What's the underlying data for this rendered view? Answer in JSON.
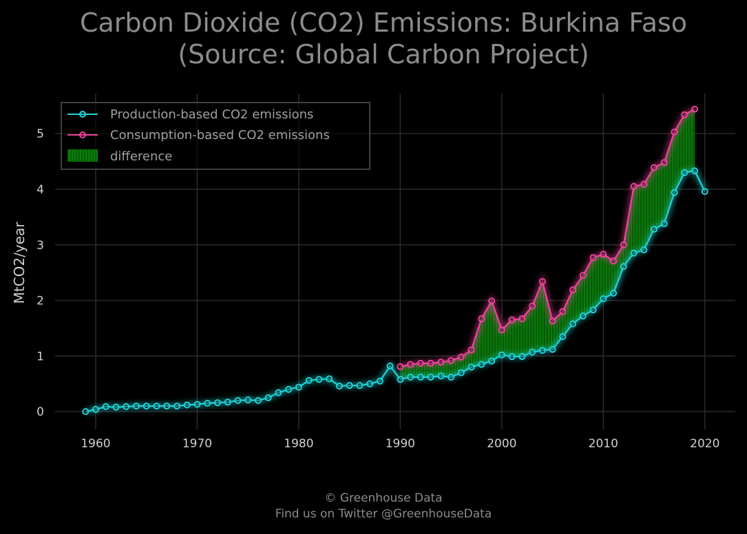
{
  "title_line1": "Carbon Dioxide (CO2) Emissions: Burkina Faso",
  "title_line2": "(Source: Global Carbon Project)",
  "footer_line1": "© Greenhouse Data",
  "footer_line2": "Find us on Twitter @GreenhouseData",
  "colors": {
    "background": "#000000",
    "production": "#1fd5d9",
    "consumption": "#f0449c",
    "difference": "#0a8a0a",
    "grid": "#2b2b2b",
    "title": "#8c8c8c",
    "ticks": "#d0d0d0"
  },
  "chart_data": {
    "type": "line",
    "title": "Carbon Dioxide (CO2) Emissions: Burkina Faso (Source: Global Carbon Project)",
    "xlabel": "",
    "ylabel": "MtCO2/year",
    "xlim": [
      1956,
      2023
    ],
    "ylim": [
      -0.32,
      5.72
    ],
    "xticks": [
      1960,
      1970,
      1980,
      1990,
      2000,
      2010,
      2020
    ],
    "yticks": [
      0,
      1,
      2,
      3,
      4,
      5
    ],
    "grid": true,
    "legend_position": "top-left",
    "legend": [
      "Production-based CO2 emissions",
      "Consumption-based CO2 emissions",
      "difference"
    ],
    "series": [
      {
        "name": "Production-based CO2 emissions",
        "x": [
          1959,
          1960,
          1961,
          1962,
          1963,
          1964,
          1965,
          1966,
          1967,
          1968,
          1969,
          1970,
          1971,
          1972,
          1973,
          1974,
          1975,
          1976,
          1977,
          1978,
          1979,
          1980,
          1981,
          1982,
          1983,
          1984,
          1985,
          1986,
          1987,
          1988,
          1989,
          1990,
          1991,
          1992,
          1993,
          1994,
          1995,
          1996,
          1997,
          1998,
          1999,
          2000,
          2001,
          2002,
          2003,
          2004,
          2005,
          2006,
          2007,
          2008,
          2009,
          2010,
          2011,
          2012,
          2013,
          2014,
          2015,
          2016,
          2017,
          2018,
          2019,
          2020
        ],
        "values": [
          0.0,
          0.04,
          0.09,
          0.08,
          0.09,
          0.1,
          0.1,
          0.1,
          0.1,
          0.1,
          0.12,
          0.13,
          0.15,
          0.16,
          0.17,
          0.2,
          0.21,
          0.2,
          0.25,
          0.34,
          0.4,
          0.44,
          0.56,
          0.58,
          0.59,
          0.46,
          0.47,
          0.47,
          0.5,
          0.55,
          0.82,
          0.58,
          0.62,
          0.62,
          0.62,
          0.64,
          0.62,
          0.7,
          0.8,
          0.85,
          0.91,
          1.02,
          0.99,
          0.99,
          1.07,
          1.1,
          1.12,
          1.35,
          1.58,
          1.72,
          1.83,
          2.03,
          2.13,
          2.61,
          2.85,
          2.91,
          3.28,
          3.38,
          3.94,
          4.3,
          4.33,
          3.96
        ]
      },
      {
        "name": "Consumption-based CO2 emissions",
        "x": [
          1990,
          1991,
          1992,
          1993,
          1994,
          1995,
          1996,
          1997,
          1998,
          1999,
          2000,
          2001,
          2002,
          2003,
          2004,
          2005,
          2006,
          2007,
          2008,
          2009,
          2010,
          2011,
          2012,
          2013,
          2014,
          2015,
          2016,
          2017,
          2018,
          2019
        ],
        "values": [
          0.81,
          0.85,
          0.87,
          0.87,
          0.89,
          0.92,
          0.98,
          1.11,
          1.67,
          1.99,
          1.47,
          1.65,
          1.67,
          1.9,
          2.34,
          1.63,
          1.8,
          2.19,
          2.45,
          2.77,
          2.83,
          2.71,
          3.0,
          4.05,
          4.09,
          4.39,
          4.48,
          5.03,
          5.34,
          5.44
        ]
      }
    ]
  }
}
